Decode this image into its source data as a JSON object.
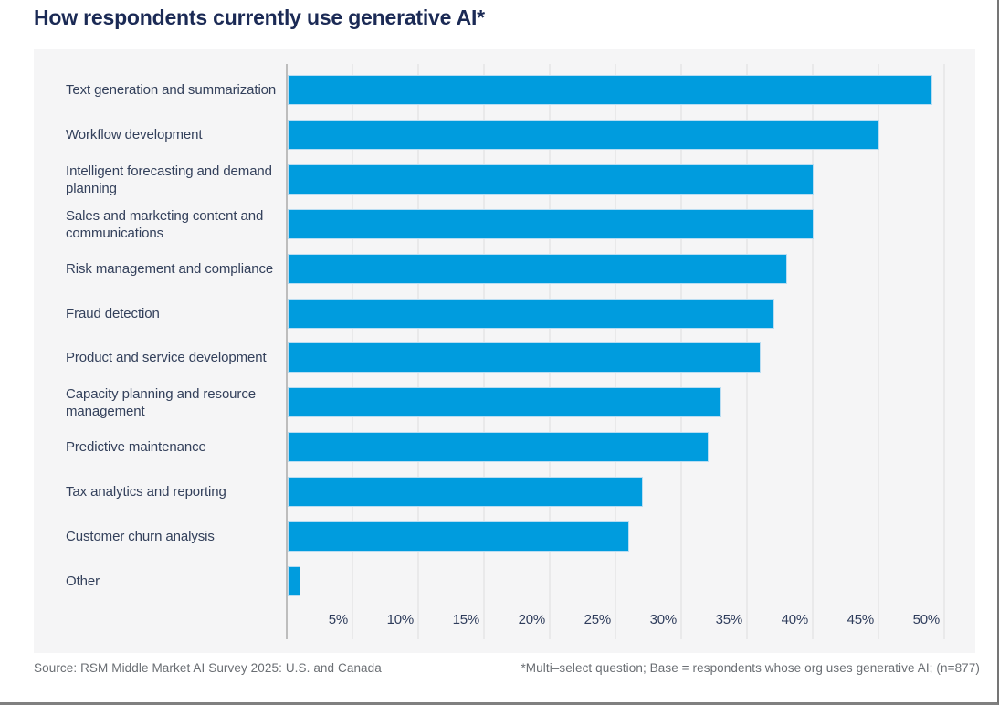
{
  "page": {
    "title": "How respondents currently use generative AI*"
  },
  "chart_data": {
    "type": "bar",
    "orientation": "horizontal",
    "title": "How respondents currently use generative AI*",
    "unit": "percent",
    "categories": [
      "Text generation and summarization",
      "Workflow development",
      "Intelligent forecasting and demand planning",
      "Sales and marketing content and communications",
      "Risk management and compliance",
      "Fraud detection",
      "Product and service development",
      "Capacity planning and resource management",
      "Predictive maintenance",
      "Tax analytics and reporting",
      "Customer churn analysis",
      "Other"
    ],
    "values": [
      49,
      45,
      40,
      40,
      38,
      37,
      36,
      33,
      32,
      27,
      26,
      1
    ],
    "x_tick_values": [
      5,
      10,
      15,
      20,
      25,
      30,
      35,
      40,
      45,
      50
    ],
    "x_tick_labels": [
      "5%",
      "10%",
      "15%",
      "20%",
      "25%",
      "30%",
      "35%",
      "40%",
      "45%",
      "50%"
    ],
    "xlim": [
      0,
      52
    ],
    "grid": true,
    "legend": false,
    "bar_color": "#009CDE",
    "panel_background": "#F5F5F6",
    "title_color": "#1B2A55"
  },
  "footer": {
    "source": "Source: RSM Middle Market AI Survey 2025: U.S. and Canada",
    "note": "*Multi–select question; Base = respondents whose org uses generative AI; (n=877)"
  }
}
